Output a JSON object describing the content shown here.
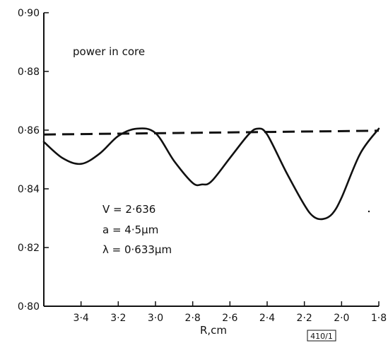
{
  "chart_data": {
    "type": "line",
    "title": "",
    "xlabel": "R,cm",
    "ylabel": "",
    "xlim": [
      3.6,
      1.8
    ],
    "ylim": [
      0.8,
      0.9
    ],
    "x_reversed": true,
    "x_ticks": [
      "3·4",
      "3·2",
      "3·0",
      "2·8",
      "2·6",
      "2·4",
      "2·2",
      "2·0",
      "1·8"
    ],
    "x_tick_values": [
      3.4,
      3.2,
      3.0,
      2.8,
      2.6,
      2.4,
      2.2,
      2.0,
      1.8
    ],
    "y_ticks": [
      "0·80",
      "0·82",
      "0·84",
      "0·86",
      "0·88",
      "0·90"
    ],
    "y_tick_values": [
      0.8,
      0.82,
      0.84,
      0.86,
      0.88,
      0.9
    ],
    "grid": false,
    "series": [
      {
        "style": "solid",
        "color": "#111111",
        "x": [
          3.6,
          3.5,
          3.4,
          3.3,
          3.2,
          3.1,
          3.0,
          2.9,
          2.8,
          2.75,
          2.7,
          2.6,
          2.5,
          2.45,
          2.4,
          2.3,
          2.2,
          2.15,
          2.1,
          2.05,
          2.0,
          1.9,
          1.8
        ],
        "y": [
          0.856,
          0.8505,
          0.8485,
          0.852,
          0.858,
          0.8605,
          0.859,
          0.8495,
          0.842,
          0.8415,
          0.8425,
          0.8505,
          0.8585,
          0.8605,
          0.8585,
          0.846,
          0.8345,
          0.8305,
          0.8297,
          0.8315,
          0.837,
          0.852,
          0.8605
        ]
      },
      {
        "style": "dashed",
        "color": "#111111",
        "x": [
          3.6,
          1.8
        ],
        "y": [
          0.8585,
          0.8598
        ]
      }
    ],
    "annotations": [
      "power in core",
      "V = 2·636",
      "a = 4·5µm",
      "λ = 0·633µm"
    ],
    "figure_id": "410/1"
  }
}
